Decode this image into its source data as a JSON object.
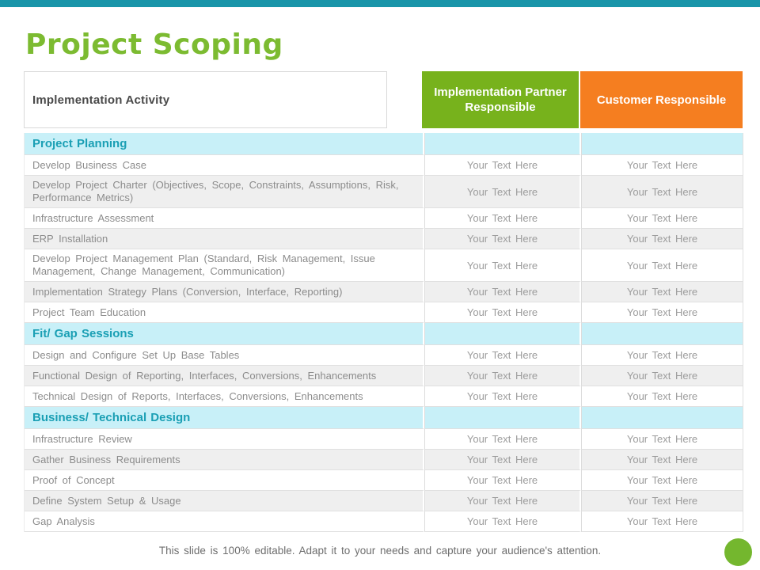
{
  "title": "Project Scoping",
  "colors": {
    "top_bar": "#1995A9",
    "title_green": "#7CBB31",
    "header_green": "#77B21C",
    "header_orange": "#F57E20",
    "section_bg": "#C8F0F8",
    "section_text": "#1A9FB4",
    "row_alt_bg": "#EFEFEF",
    "circle_green": "#74B72E"
  },
  "table": {
    "header_activity": "Implementation Activity",
    "header_partner": "Implementation Partner Responsible",
    "header_customer": "Customer Responsible",
    "placeholder": "Your Text Here",
    "sections": [
      {
        "title": "Project Planning",
        "rows": [
          "Develop Business Case",
          "Develop Project Charter (Objectives, Scope, Constraints, Assumptions, Risk, Performance Metrics)",
          "Infrastructure Assessment",
          "ERP Installation",
          "Develop Project Management Plan (Standard, Risk Management, Issue Management, Change Management, Communication)",
          "Implementation Strategy Plans (Conversion, Interface, Reporting)",
          "Project Team Education"
        ]
      },
      {
        "title": "Fit/ Gap Sessions",
        "rows": [
          "Design and Configure Set Up Base Tables",
          "Functional Design of Reporting, Interfaces, Conversions, Enhancements",
          "Technical Design of Reports, Interfaces, Conversions, Enhancements"
        ]
      },
      {
        "title": "Business/ Technical Design",
        "rows": [
          "Infrastructure Review",
          "Gather Business Requirements",
          "Proof of Concept",
          "Define System Setup & Usage",
          "Gap Analysis"
        ]
      }
    ]
  },
  "footer": {
    "text": "This slide is 100% editable. Adapt it to your needs and capture your audience's attention."
  }
}
